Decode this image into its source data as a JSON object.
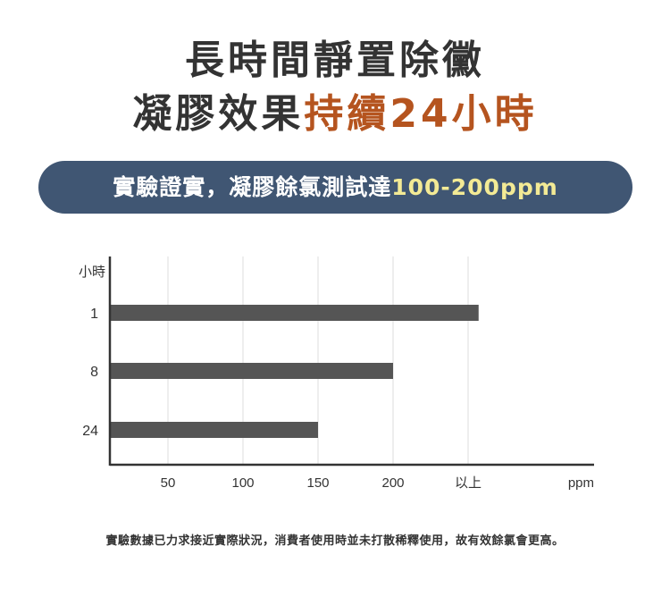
{
  "headline": {
    "line1": "長時間靜置除黴",
    "line2_prefix": "凝膠效果",
    "line2_highlight": "持續24小時"
  },
  "banner": {
    "text": "實驗證實，凝膠餘氯測試達",
    "highlight": "100-200ppm"
  },
  "colors": {
    "title": "#333333",
    "highlight": "#b5541f",
    "banner_bg": "#405673",
    "banner_highlight": "#f3ea95",
    "bar": "#555555"
  },
  "chart_data": {
    "type": "bar",
    "orientation": "horizontal",
    "ylabel": "小時",
    "xlabel": "ppm",
    "categories": [
      "1",
      "8",
      "24"
    ],
    "values": [
      257,
      200,
      150
    ],
    "x_ticks": [
      50,
      100,
      150,
      200,
      250
    ],
    "x_tick_labels": [
      "50",
      "100",
      "150",
      "200",
      "以上"
    ],
    "grid": "vertical",
    "legend": "none"
  },
  "footnote": "實驗數據已力求接近實際狀況，消費者使用時並未打散稀釋使用，故有效餘氯會更高。"
}
